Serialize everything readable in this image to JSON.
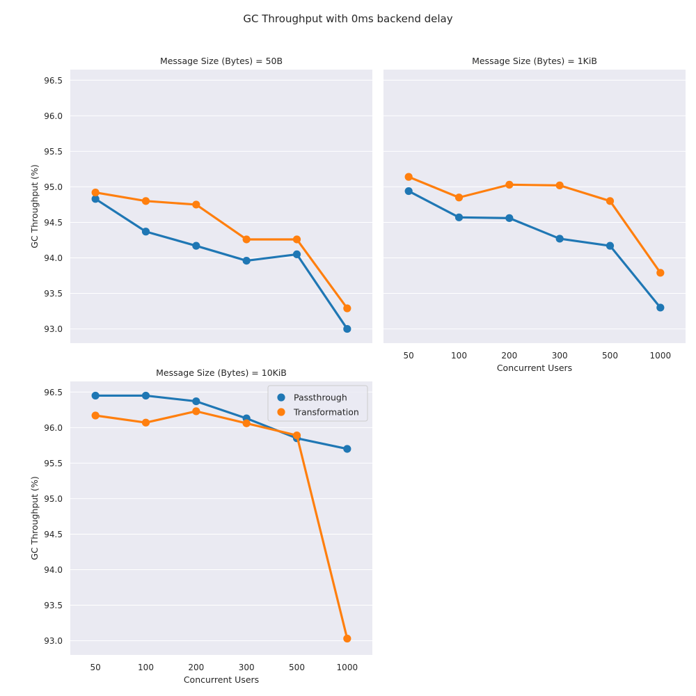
{
  "figure": {
    "title": "GC Throughput with 0ms backend delay"
  },
  "colors": {
    "panel_bg": "#EAEAF2",
    "grid": "#FFFFFF",
    "passthrough": "#1F77B4",
    "transformation": "#FF7F0E"
  },
  "chart_data": [
    {
      "type": "line",
      "title": "Message Size (Bytes) = 50B",
      "xlabel": "",
      "ylabel": "GC Throughput (%)",
      "categories": [
        "50",
        "100",
        "200",
        "300",
        "500",
        "1000"
      ],
      "ylim": [
        92.8,
        96.65
      ],
      "yticks": [
        "93.0",
        "93.5",
        "94.0",
        "94.5",
        "95.0",
        "95.5",
        "96.0",
        "96.5"
      ],
      "show_xticks": false,
      "show_yticks": true,
      "grid": "y",
      "legend": null,
      "series": [
        {
          "name": "Passthrough",
          "values": [
            94.83,
            94.37,
            94.17,
            93.96,
            94.05,
            93.0
          ]
        },
        {
          "name": "Transformation",
          "values": [
            94.92,
            94.8,
            94.75,
            94.26,
            94.26,
            93.29
          ]
        }
      ]
    },
    {
      "type": "line",
      "title": "Message Size (Bytes) = 1KiB",
      "xlabel": "Concurrent Users",
      "ylabel": "",
      "categories": [
        "50",
        "100",
        "200",
        "300",
        "500",
        "1000"
      ],
      "ylim": [
        92.8,
        96.65
      ],
      "yticks": [
        "93.0",
        "93.5",
        "94.0",
        "94.5",
        "95.0",
        "95.5",
        "96.0",
        "96.5"
      ],
      "show_xticks": true,
      "show_yticks": false,
      "grid": "y",
      "legend": null,
      "series": [
        {
          "name": "Passthrough",
          "values": [
            94.94,
            94.57,
            94.56,
            94.27,
            94.17,
            93.3
          ]
        },
        {
          "name": "Transformation",
          "values": [
            95.14,
            94.85,
            95.03,
            95.02,
            94.8,
            93.79
          ]
        }
      ]
    },
    {
      "type": "line",
      "title": "Message Size (Bytes) = 10KiB",
      "xlabel": "Concurrent Users",
      "ylabel": "GC Throughput (%)",
      "categories": [
        "50",
        "100",
        "200",
        "300",
        "500",
        "1000"
      ],
      "ylim": [
        92.8,
        96.65
      ],
      "yticks": [
        "93.0",
        "93.5",
        "94.0",
        "94.5",
        "95.0",
        "95.5",
        "96.0",
        "96.5"
      ],
      "show_xticks": true,
      "show_yticks": true,
      "grid": "y",
      "legend": "top-right",
      "series": [
        {
          "name": "Passthrough",
          "values": [
            96.45,
            96.45,
            96.37,
            96.13,
            95.85,
            95.7
          ]
        },
        {
          "name": "Transformation",
          "values": [
            96.17,
            96.07,
            96.23,
            96.06,
            95.89,
            93.03
          ]
        }
      ]
    }
  ]
}
